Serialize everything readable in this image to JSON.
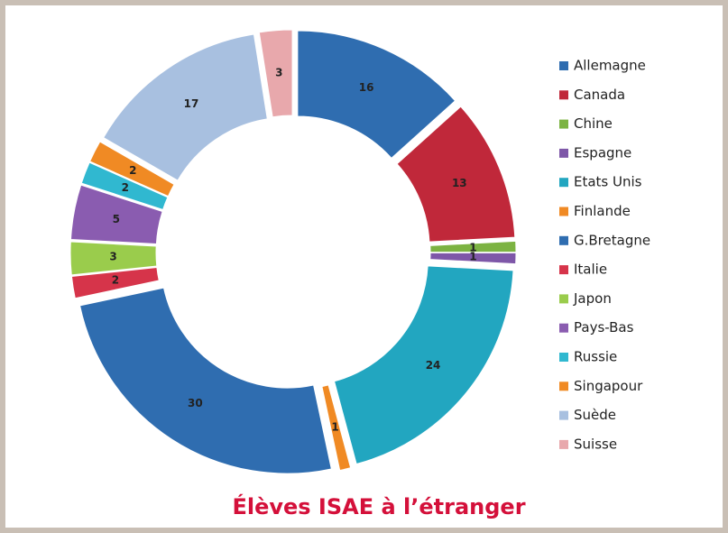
{
  "chart_data": {
    "type": "donut",
    "title": "Élèves ISAE à l’étranger",
    "categories": [
      "Allemagne",
      "Canada",
      "Chine",
      "Espagne",
      "Etats Unis",
      "Finlande",
      "G.Bretagne",
      "Italie",
      "Japon",
      "Pays-Bas",
      "Russie",
      "Singapour",
      "Suède",
      "Suisse"
    ],
    "values": [
      16,
      13,
      1,
      1,
      24,
      1,
      30,
      2,
      3,
      5,
      2,
      2,
      17,
      3
    ],
    "colors": [
      "#2f6db0",
      "#c0283a",
      "#7cb342",
      "#7e57a8",
      "#22a6c0",
      "#f08a24",
      "#2f6db0",
      "#d6344a",
      "#9acc4c",
      "#8a5cb0",
      "#30b8d0",
      "#f08a24",
      "#a8c0e0",
      "#e8a8ac"
    ],
    "legend": "right"
  }
}
